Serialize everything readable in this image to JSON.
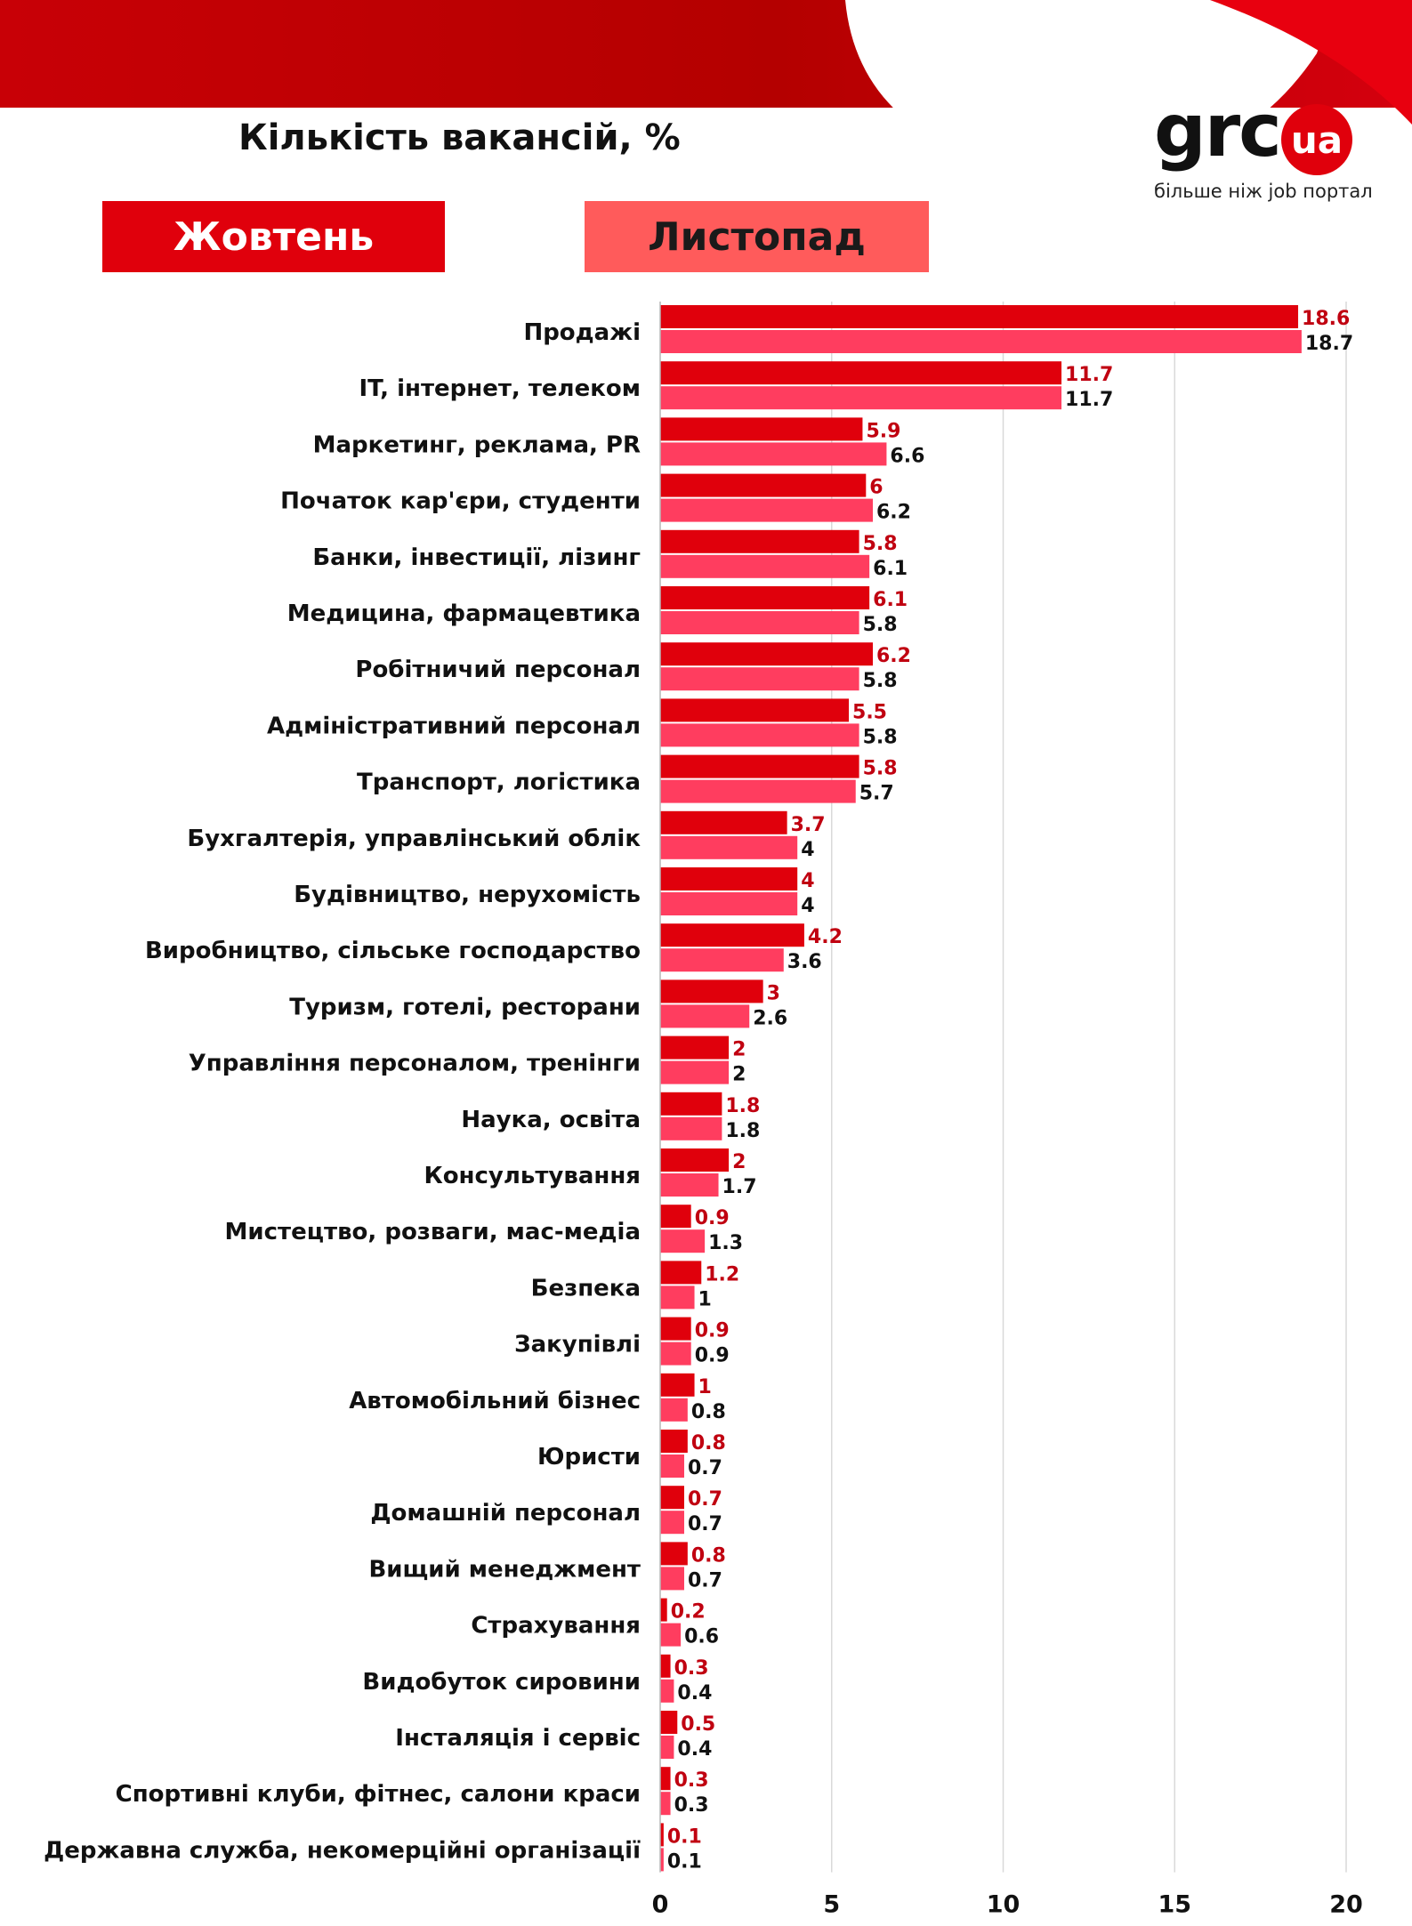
{
  "header": {
    "title": "Кількість вакансій, %",
    "logo_main": "grc",
    "logo_badge": "ua",
    "logo_tagline": "більше ніж job портал"
  },
  "colors": {
    "october": "#e0000c",
    "november": "#ff3d5f",
    "october_label": "#c00010",
    "november_label": "#111111",
    "band": "#b40000"
  },
  "chart_data": {
    "type": "bar",
    "orientation": "horizontal",
    "title": "Кількість вакансій, %",
    "legend": [
      "Жовтень",
      "Листопад"
    ],
    "legend_position": "top",
    "xlim": [
      0,
      20
    ],
    "xticks": [
      0,
      5,
      10,
      15,
      20
    ],
    "grid": true,
    "categories": [
      "Продажі",
      "IT, інтернет, телеком",
      "Маркетинг, реклама, PR",
      "Початок кар'єри, студенти",
      "Банки, інвестиції, лізинг",
      "Медицина, фармацевтика",
      "Робітничий персонал",
      "Адміністративний персонал",
      "Транспорт, логістика",
      "Бухгалтерія, управлінський облік",
      "Будівництво, нерухомість",
      "Виробництво, сільське господарство",
      "Туризм, готелі, ресторани",
      "Управління персоналом, тренінги",
      "Наука, освіта",
      "Консультування",
      "Мистецтво, розваги, мас-медіа",
      "Безпека",
      "Закупівлі",
      "Автомобільний бізнес",
      "Юристи",
      "Домашній персонал",
      "Вищий менеджмент",
      "Страхування",
      "Видобуток сировини",
      "Інсталяція і сервіс",
      "Спортивні клуби, фітнес, салони краси",
      "Державна служба, некомерційні організації"
    ],
    "series": [
      {
        "name": "Жовтень",
        "values": [
          18.6,
          11.7,
          5.9,
          6,
          5.8,
          6.1,
          6.2,
          5.5,
          5.8,
          3.7,
          4,
          4.2,
          3,
          2,
          1.8,
          2,
          0.9,
          1.2,
          0.9,
          1,
          0.8,
          0.7,
          0.8,
          0.2,
          0.3,
          0.5,
          0.3,
          0.1
        ]
      },
      {
        "name": "Листопад",
        "values": [
          18.7,
          11.7,
          6.6,
          6.2,
          6.1,
          5.8,
          5.8,
          5.8,
          5.7,
          4,
          4,
          3.6,
          2.6,
          2,
          1.8,
          1.7,
          1.3,
          1,
          0.9,
          0.8,
          0.7,
          0.7,
          0.7,
          0.6,
          0.4,
          0.4,
          0.3,
          0.1
        ]
      }
    ]
  }
}
